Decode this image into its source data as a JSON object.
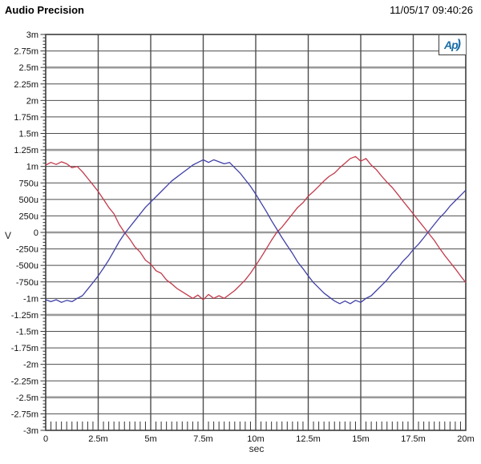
{
  "header": {
    "title": "Audio Precision",
    "timestamp": "11/05/17 09:40:26"
  },
  "logo": {
    "text": "Ap",
    "paren": ")",
    "color": "#1a6da6"
  },
  "axes": {
    "y_unit_label": "V",
    "x_unit_label": "sec",
    "y_tick_labels": [
      "3m",
      "2.75m",
      "2.5m",
      "2.25m",
      "2m",
      "1.75m",
      "1.5m",
      "1.25m",
      "1m",
      "750u",
      "500u",
      "250u",
      "0",
      "-250u",
      "-500u",
      "-750u",
      "-1m",
      "-1.25m",
      "-1.5m",
      "-1.75m",
      "-2m",
      "-2.25m",
      "-2.5m",
      "-2.75m",
      "-3m"
    ],
    "x_tick_labels": [
      "0",
      "2.5m",
      "5m",
      "7.5m",
      "10m",
      "12.5m",
      "15m",
      "17.5m",
      "20m"
    ]
  },
  "chart_data": {
    "type": "line",
    "title": "Audio Precision",
    "xlabel": "sec",
    "ylabel": "V",
    "xlim_ms": [
      0,
      20
    ],
    "ylim_mv": [
      -3,
      3
    ],
    "x_major_step_ms": 2.5,
    "x_minor_step_ms": 0.25,
    "y_major_step_mv": 0.25,
    "y_minor_step_mv": 0.05,
    "y_emphasized_step_mv": 1.25,
    "grid": true,
    "legend": "none",
    "x_ms": [
      0,
      0.25,
      0.5,
      0.75,
      1,
      1.25,
      1.5,
      1.75,
      2,
      2.25,
      2.5,
      2.75,
      3,
      3.25,
      3.5,
      3.75,
      4,
      4.25,
      4.5,
      4.75,
      5,
      5.25,
      5.5,
      5.75,
      6,
      6.25,
      6.5,
      6.75,
      7,
      7.25,
      7.5,
      7.75,
      8,
      8.25,
      8.5,
      8.75,
      9,
      9.25,
      9.5,
      9.75,
      10,
      10.25,
      10.5,
      10.75,
      11,
      11.25,
      11.5,
      11.75,
      12,
      12.25,
      12.5,
      12.75,
      13,
      13.25,
      13.5,
      13.75,
      14,
      14.25,
      14.5,
      14.75,
      15,
      15.25,
      15.5,
      15.75,
      16,
      16.25,
      16.5,
      16.75,
      17,
      17.25,
      17.5,
      17.75,
      18,
      18.25,
      18.5,
      18.75,
      19,
      19.25,
      19.5,
      19.75,
      20
    ],
    "series": [
      {
        "name": "channel-red",
        "color": "#c23a4b",
        "values_mv": [
          1.02,
          1.06,
          1.03,
          1.07,
          1.04,
          0.98,
          1.0,
          0.92,
          0.82,
          0.72,
          0.62,
          0.5,
          0.38,
          0.28,
          0.12,
          0.0,
          -0.1,
          -0.22,
          -0.3,
          -0.42,
          -0.48,
          -0.58,
          -0.62,
          -0.72,
          -0.78,
          -0.85,
          -0.9,
          -0.95,
          -1.0,
          -0.95,
          -1.02,
          -0.94,
          -1.0,
          -0.96,
          -1.0,
          -0.94,
          -0.88,
          -0.8,
          -0.72,
          -0.62,
          -0.5,
          -0.38,
          -0.25,
          -0.12,
          0.0,
          0.08,
          0.18,
          0.28,
          0.38,
          0.45,
          0.55,
          0.62,
          0.7,
          0.78,
          0.85,
          0.9,
          0.98,
          1.05,
          1.12,
          1.15,
          1.08,
          1.12,
          1.02,
          0.95,
          0.85,
          0.76,
          0.68,
          0.58,
          0.48,
          0.38,
          0.28,
          0.18,
          0.08,
          -0.02,
          -0.12,
          -0.24,
          -0.35,
          -0.45,
          -0.55,
          -0.66,
          -0.76
        ]
      },
      {
        "name": "channel-blue",
        "color": "#4040a8",
        "values_mv": [
          -1.02,
          -1.05,
          -1.02,
          -1.06,
          -1.03,
          -1.05,
          -1.0,
          -0.96,
          -0.86,
          -0.76,
          -0.66,
          -0.54,
          -0.42,
          -0.28,
          -0.14,
          -0.02,
          0.08,
          0.18,
          0.28,
          0.38,
          0.46,
          0.54,
          0.62,
          0.7,
          0.78,
          0.84,
          0.9,
          0.96,
          1.02,
          1.06,
          1.1,
          1.06,
          1.1,
          1.07,
          1.04,
          1.06,
          0.98,
          0.9,
          0.8,
          0.7,
          0.58,
          0.45,
          0.32,
          0.18,
          0.05,
          -0.08,
          -0.2,
          -0.32,
          -0.45,
          -0.55,
          -0.66,
          -0.76,
          -0.84,
          -0.92,
          -0.98,
          -1.04,
          -1.08,
          -1.04,
          -1.08,
          -1.03,
          -1.06,
          -1.0,
          -0.96,
          -0.88,
          -0.8,
          -0.72,
          -0.62,
          -0.54,
          -0.44,
          -0.36,
          -0.26,
          -0.18,
          -0.08,
          0.02,
          0.12,
          0.22,
          0.3,
          0.4,
          0.48,
          0.56,
          0.64
        ]
      }
    ]
  },
  "style_colors": {
    "grid_thin": "#4e4e4e",
    "grid_thick": "#9a9a9a",
    "grid_vertical": "#4d4d4d",
    "border": "#3d3d3d",
    "tick": "#333333"
  }
}
